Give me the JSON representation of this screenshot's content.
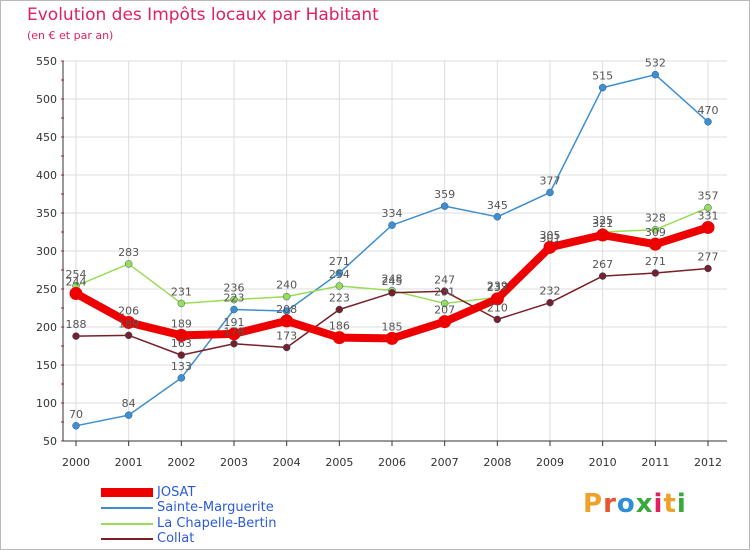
{
  "header": {
    "title": "Evolution des Impôts locaux par Habitant",
    "subtitle": "(en € et par an)"
  },
  "brand": {
    "name": "Proxiti",
    "letters": [
      "P",
      "r",
      "o",
      "x",
      "i",
      "t",
      "i"
    ],
    "colors": [
      "#f0a12b",
      "#e8552c",
      "#2e8fd6",
      "#3aa93c",
      "#e0215f",
      "#f0a12b",
      "#3aa93c"
    ]
  },
  "colors": {
    "title": "#e0215f",
    "legend_text": "#2b5bd7",
    "axis": "#333333",
    "grid": "#dddddd",
    "tick_mark": "#d81f4b"
  },
  "chart_data": {
    "type": "line",
    "title": "Evolution des Impôts locaux par Habitant",
    "subtitle": "(en € et par an)",
    "xlabel": "",
    "ylabel": "",
    "x": [
      "2000",
      "2001",
      "2002",
      "2003",
      "2004",
      "2005",
      "2006",
      "2007",
      "2008",
      "2009",
      "2010",
      "2011",
      "2012"
    ],
    "yticks": [
      50,
      100,
      150,
      200,
      250,
      300,
      350,
      400,
      450,
      500,
      550
    ],
    "ylim": [
      50,
      550
    ],
    "grid": true,
    "legend_position": "bottom-left",
    "series": [
      {
        "name": "Sainte-Marguerite",
        "color": "#3f8fd0",
        "thick": false,
        "values": [
          70,
          84,
          133,
          223,
          221,
          271,
          334,
          359,
          345,
          377,
          515,
          532,
          470
        ],
        "labels": [
          "70",
          "84",
          "133",
          "223",
          "",
          "271",
          "334",
          "359",
          "345",
          "377",
          "515",
          "532",
          "470"
        ]
      },
      {
        "name": "La Chapelle-Bertin",
        "color": "#99dc55",
        "thick": false,
        "values": [
          254,
          283,
          231,
          236,
          240,
          254,
          248,
          231,
          239,
          301,
          325,
          328,
          357
        ],
        "labels": [
          "254",
          "283",
          "231",
          "236",
          "240",
          "254",
          "248",
          "231",
          "239",
          "301",
          "325",
          "328",
          "357"
        ]
      },
      {
        "name": "Collat",
        "color": "#7a1f27",
        "thick": false,
        "values": [
          188,
          189,
          163,
          178,
          173,
          223,
          245,
          247,
          210,
          232,
          267,
          271,
          277
        ],
        "labels": [
          "188",
          "189",
          "163",
          "178",
          "173",
          "223",
          "245",
          "247",
          "210",
          "232",
          "267",
          "271",
          "277"
        ]
      },
      {
        "name": "JOSAT",
        "color": "#ee0000",
        "thick": true,
        "values": [
          244,
          206,
          189,
          191,
          208,
          186,
          185,
          207,
          237,
          305,
          321,
          309,
          331
        ],
        "labels": [
          "244",
          "206",
          "189",
          "191",
          "208",
          "186",
          "185",
          "207",
          "237",
          "305",
          "321",
          "309",
          "331"
        ]
      }
    ],
    "legend": [
      "JOSAT",
      "Sainte-Marguerite",
      "La Chapelle-Bertin",
      "Collat"
    ]
  }
}
